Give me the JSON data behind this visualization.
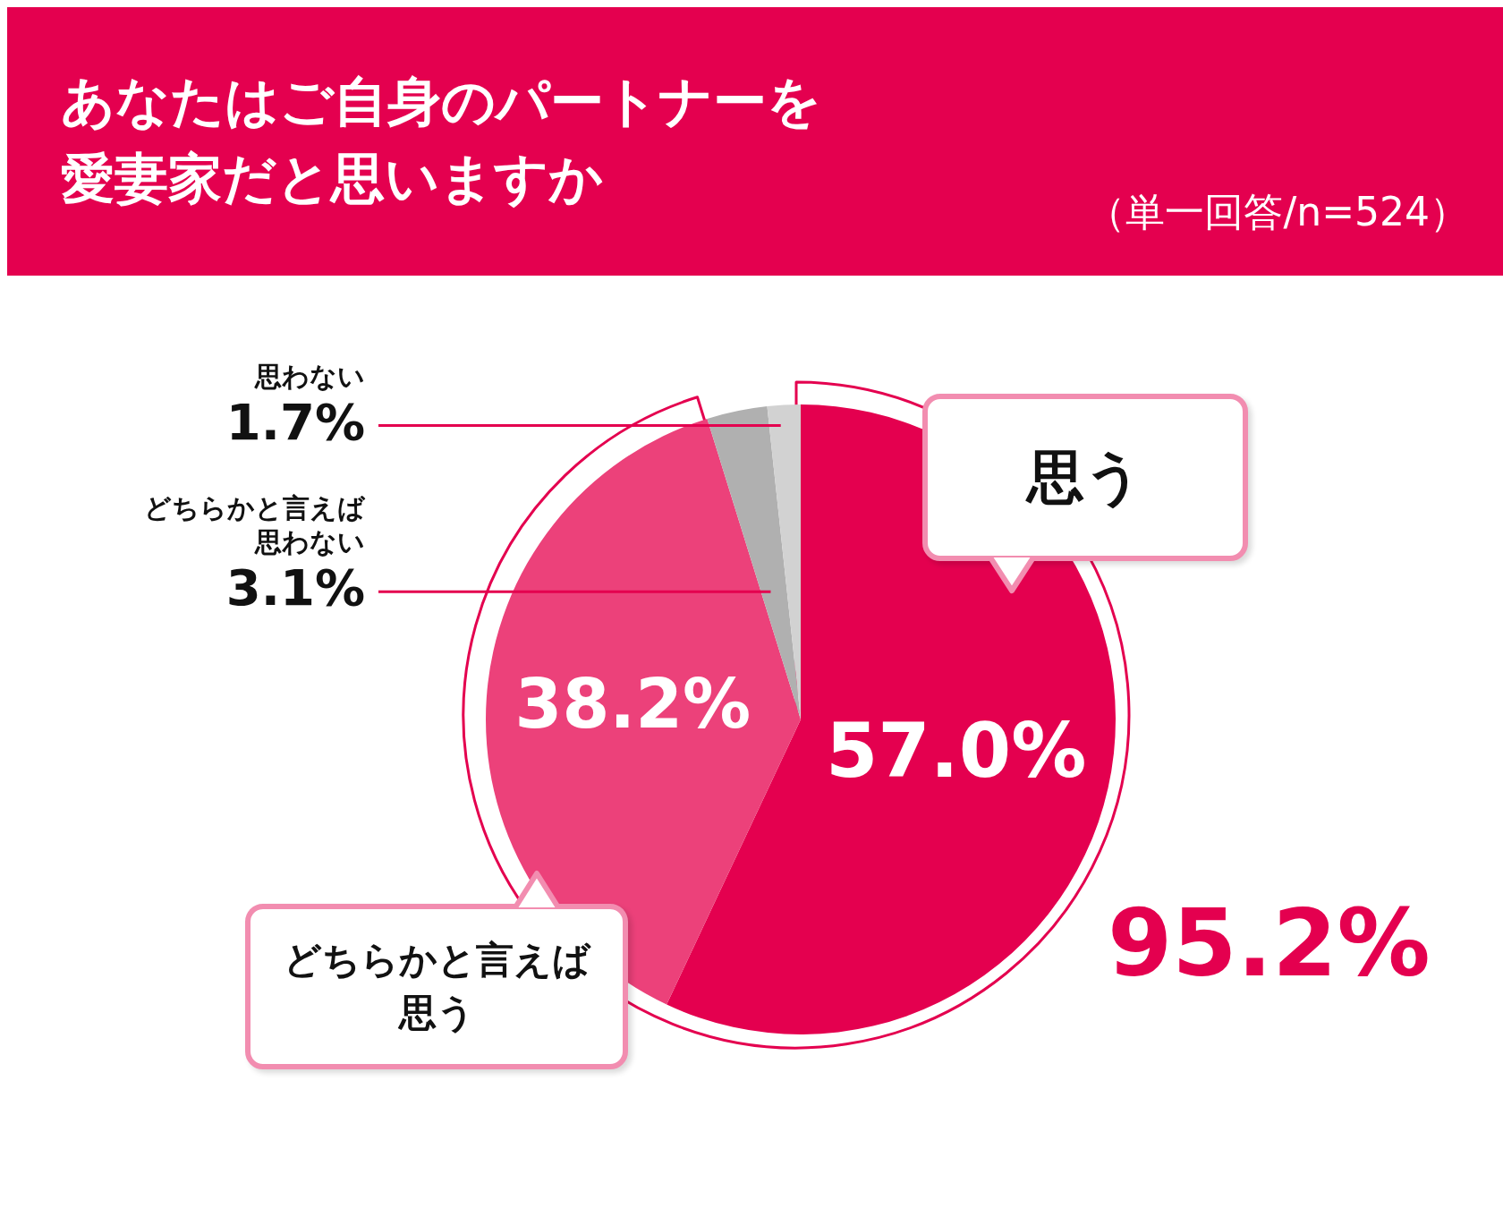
{
  "chart_data": {
    "type": "pie",
    "title": "あなたはご自身のパートナーを愛妻家だと思いますか",
    "subtitle": "（単一回答/n=524）",
    "categories": [
      "思う",
      "どちらかと言えば思う",
      "どちらかと言えば思わない",
      "思わない"
    ],
    "values": [
      57.0,
      38.2,
      3.1,
      1.7
    ],
    "colors": [
      "#e4004f",
      "#ec417a",
      "#b0b0b0",
      "#d2d2d2"
    ],
    "value_labels": [
      "57.0%",
      "38.2%",
      "3.1%",
      "1.7%"
    ],
    "annotations": [
      "95.2%"
    ]
  }
}
